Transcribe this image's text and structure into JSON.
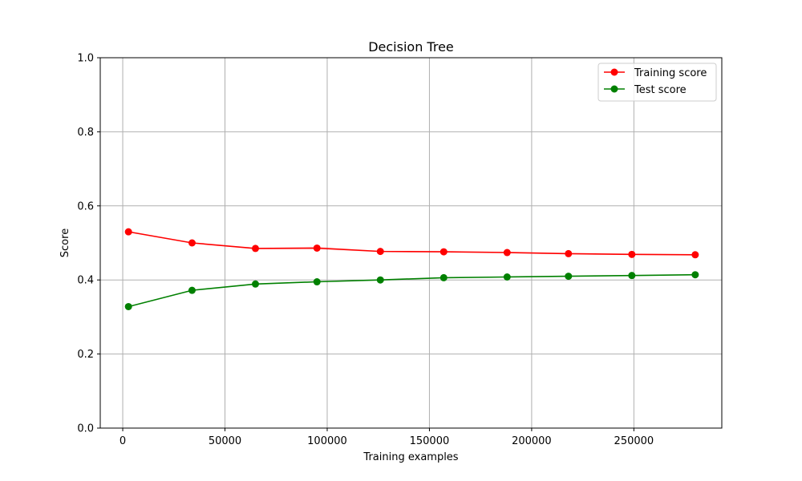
{
  "chart_data": {
    "type": "line",
    "title": "Decision Tree",
    "xlabel": "Training examples",
    "ylabel": "Score",
    "xlim": [
      -11000,
      293000
    ],
    "ylim": [
      0.0,
      1.0
    ],
    "x_ticks": [
      0,
      50000,
      100000,
      150000,
      200000,
      250000
    ],
    "y_ticks": [
      0.0,
      0.2,
      0.4,
      0.6,
      0.8,
      1.0
    ],
    "x_tick_labels": [
      "0",
      "50000",
      "100000",
      "150000",
      "200000",
      "250000"
    ],
    "y_tick_labels": [
      "0.0",
      "0.2",
      "0.4",
      "0.6",
      "0.8",
      "1.0"
    ],
    "grid": true,
    "legend_position": "top-right",
    "x": [
      2800,
      33900,
      64900,
      95000,
      126000,
      157000,
      188000,
      218000,
      249000,
      280000
    ],
    "series": [
      {
        "name": "Training score",
        "color": "#ff0000",
        "values": [
          0.53,
          0.5,
          0.485,
          0.486,
          0.477,
          0.476,
          0.474,
          0.471,
          0.469,
          0.468
        ],
        "band_low": [
          0.528,
          0.499,
          0.483,
          0.482,
          0.475,
          0.474,
          0.472,
          0.469,
          0.467,
          0.467
        ],
        "band_high": [
          0.532,
          0.501,
          0.487,
          0.49,
          0.479,
          0.478,
          0.476,
          0.473,
          0.471,
          0.469
        ]
      },
      {
        "name": "Test score",
        "color": "#008000",
        "values": [
          0.328,
          0.372,
          0.389,
          0.395,
          0.4,
          0.406,
          0.408,
          0.41,
          0.412,
          0.414
        ],
        "band_low": [
          0.327,
          0.371,
          0.388,
          0.394,
          0.399,
          0.405,
          0.407,
          0.409,
          0.411,
          0.413
        ],
        "band_high": [
          0.329,
          0.373,
          0.39,
          0.396,
          0.401,
          0.407,
          0.409,
          0.411,
          0.413,
          0.415
        ]
      }
    ]
  }
}
